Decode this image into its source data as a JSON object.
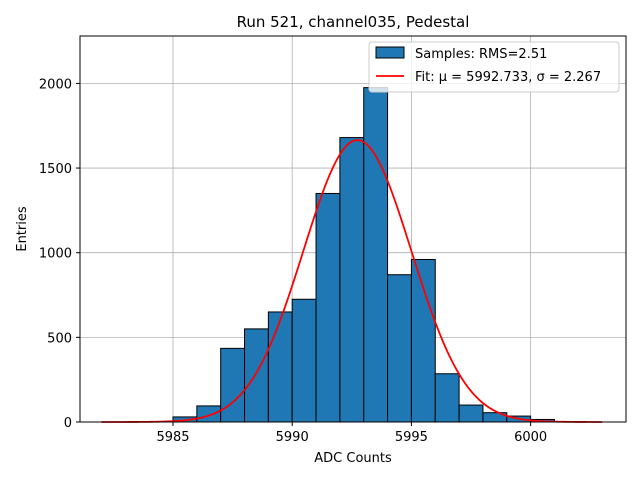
{
  "chart_data": {
    "type": "bar",
    "title": "Run 521, channel035, Pedestal",
    "xlabel": "ADC Counts",
    "ylabel": "Entries",
    "xlim": [
      5981.1,
      6004.0
    ],
    "ylim": [
      0,
      2280
    ],
    "xticks": [
      5985,
      5990,
      5995,
      6000
    ],
    "yticks": [
      0,
      500,
      1000,
      1500,
      2000
    ],
    "grid": true,
    "legend_position": "top-right",
    "bin_width": 1,
    "bins": [
      {
        "x0": 5985,
        "count": 30
      },
      {
        "x0": 5986,
        "count": 95
      },
      {
        "x0": 5987,
        "count": 435
      },
      {
        "x0": 5988,
        "count": 550
      },
      {
        "x0": 5989,
        "count": 650
      },
      {
        "x0": 5990,
        "count": 725
      },
      {
        "x0": 5991,
        "count": 1350
      },
      {
        "x0": 5992,
        "count": 1680
      },
      {
        "x0": 5993,
        "count": 1975
      },
      {
        "x0": 5994,
        "count": 870
      },
      {
        "x0": 5995,
        "count": 960
      },
      {
        "x0": 5996,
        "count": 285
      },
      {
        "x0": 5997,
        "count": 100
      },
      {
        "x0": 5998,
        "count": 55
      },
      {
        "x0": 5999,
        "count": 35
      },
      {
        "x0": 6000,
        "count": 15
      }
    ],
    "series": [
      {
        "name": "Samples: RMS=2.51",
        "kind": "histogram",
        "color": "#1f77b4"
      },
      {
        "name": "Fit: μ = 5992.733, σ = 2.267",
        "kind": "gaussian",
        "color": "#ff0000",
        "mu": 5992.733,
        "sigma": 2.267,
        "amplitude": 1665,
        "x_range": [
          5982,
          6003
        ]
      }
    ]
  }
}
